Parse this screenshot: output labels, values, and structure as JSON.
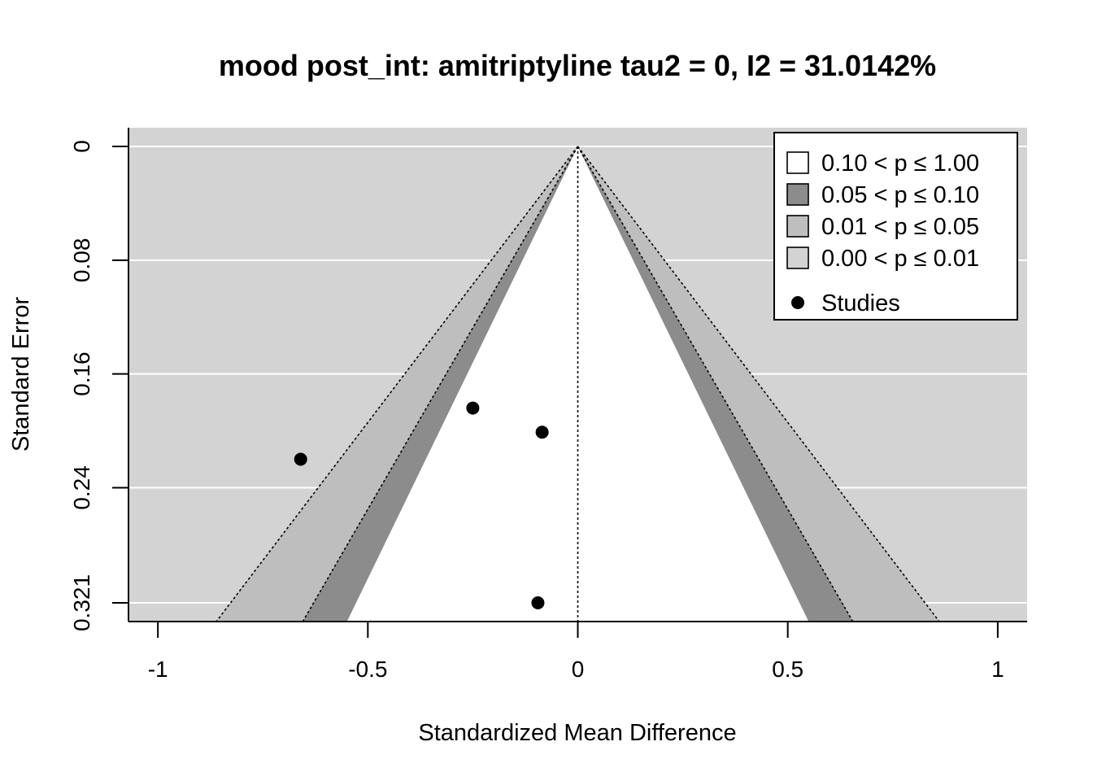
{
  "chart_data": {
    "type": "scatter",
    "subtype": "contour-enhanced funnel plot",
    "title": "mood post_int: amitriptyline tau2 = 0, I2 = 31.0142%",
    "xlabel": "Standardized Mean Difference",
    "ylabel": "Standard Error",
    "xlim": [
      -1.07,
      1.07
    ],
    "ylim": [
      0.321,
      0
    ],
    "ylim_extended_bottom": 0.334,
    "x_ticks": [
      -1,
      -0.5,
      0,
      0.5,
      1
    ],
    "x_tick_labels": [
      "-1",
      "-0.5",
      "0",
      "0.5",
      "1"
    ],
    "y_ticks": [
      0,
      0.08,
      0.16,
      0.24,
      0.321
    ],
    "y_tick_labels": [
      "0",
      "0.08",
      "0.16",
      "0.24",
      "0.321"
    ],
    "y_reversed": true,
    "grid": true,
    "background_color": "#d3d3d3",
    "center_line_x": 0,
    "contours": [
      {
        "label": "0.10 < p ≤ 1.00",
        "z": 1.645,
        "color": "#ffffff"
      },
      {
        "label": "0.05 < p ≤ 0.10",
        "z": 1.96,
        "color": "#8c8c8c"
      },
      {
        "label": "0.01 < p ≤ 0.05",
        "z": 2.576,
        "color": "#bebebe"
      },
      {
        "label": "0.00 < p ≤ 0.01",
        "z": null,
        "color": "#d3d3d3"
      }
    ],
    "series": [
      {
        "name": "Studies",
        "points": [
          {
            "x": -0.25,
            "y": 0.184
          },
          {
            "x": -0.085,
            "y": 0.201
          },
          {
            "x": -0.66,
            "y": 0.22
          },
          {
            "x": -0.095,
            "y": 0.321
          }
        ]
      }
    ],
    "legend": {
      "placement": "top-right",
      "entries": [
        {
          "label": "0.10 < p ≤ 1.00",
          "symbol": "box",
          "color": "#ffffff"
        },
        {
          "label": "0.05 < p ≤ 0.10",
          "symbol": "box",
          "color": "#8c8c8c"
        },
        {
          "label": "0.01 < p ≤ 0.05",
          "symbol": "box",
          "color": "#bebebe"
        },
        {
          "label": "0.00 < p ≤ 0.01",
          "symbol": "box",
          "color": "#d3d3d3"
        },
        {
          "label": "Studies",
          "symbol": "dot",
          "color": "#000000"
        }
      ]
    }
  }
}
